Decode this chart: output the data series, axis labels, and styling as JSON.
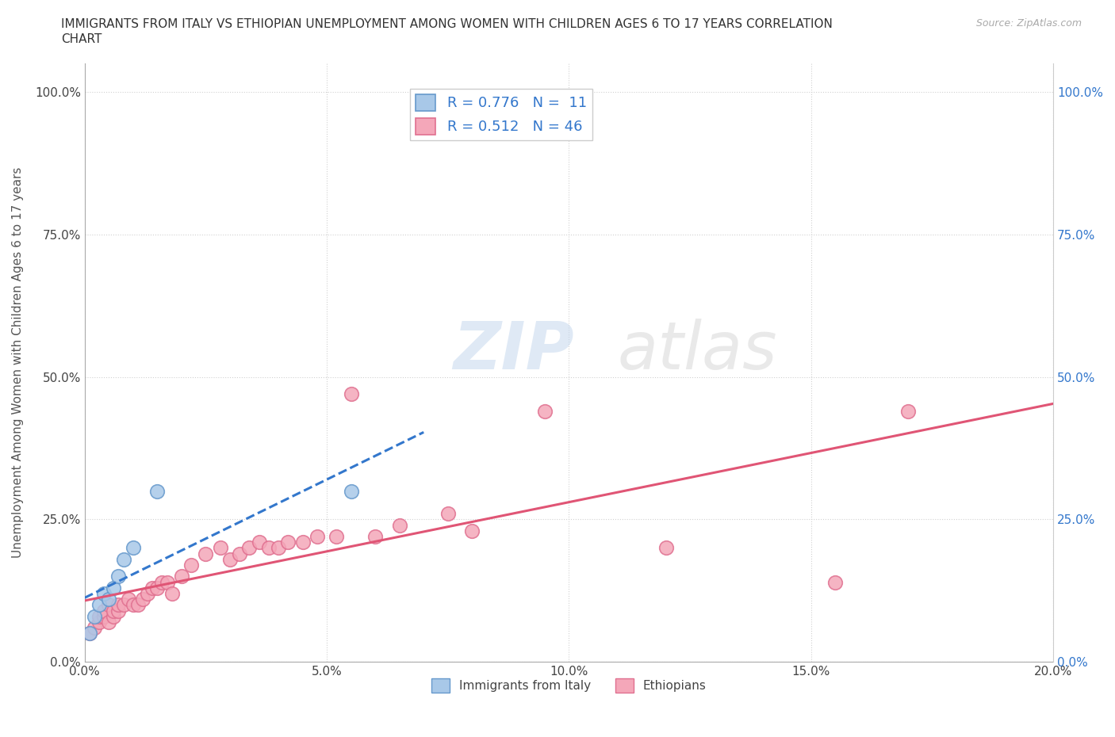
{
  "title_line1": "IMMIGRANTS FROM ITALY VS ETHIOPIAN UNEMPLOYMENT AMONG WOMEN WITH CHILDREN AGES 6 TO 17 YEARS CORRELATION",
  "title_line2": "CHART",
  "source": "Source: ZipAtlas.com",
  "ylabel": "Unemployment Among Women with Children Ages 6 to 17 years",
  "xlim": [
    0.0,
    0.2
  ],
  "ylim": [
    0.0,
    1.05
  ],
  "xtick_labels": [
    "0.0%",
    "5.0%",
    "10.0%",
    "15.0%",
    "20.0%"
  ],
  "xtick_vals": [
    0.0,
    0.05,
    0.1,
    0.15,
    0.2
  ],
  "ytick_labels": [
    "0.0%",
    "25.0%",
    "50.0%",
    "75.0%",
    "100.0%"
  ],
  "ytick_vals": [
    0.0,
    0.25,
    0.5,
    0.75,
    1.0
  ],
  "italy_color": "#a8c8e8",
  "ethiopia_color": "#f4a7b9",
  "italy_edge_color": "#6699cc",
  "ethiopia_edge_color": "#e07090",
  "trend_italy_color": "#3377cc",
  "trend_ethiopia_color": "#e05575",
  "legend_R_italy": "0.776",
  "legend_N_italy": "11",
  "legend_R_ethiopia": "0.512",
  "legend_N_ethiopia": "46",
  "italy_x": [
    0.001,
    0.002,
    0.003,
    0.004,
    0.005,
    0.006,
    0.007,
    0.008,
    0.01,
    0.015,
    0.055
  ],
  "italy_y": [
    0.05,
    0.08,
    0.1,
    0.12,
    0.11,
    0.13,
    0.15,
    0.18,
    0.2,
    0.3,
    0.3
  ],
  "ethiopia_x": [
    0.001,
    0.002,
    0.003,
    0.003,
    0.004,
    0.004,
    0.005,
    0.005,
    0.006,
    0.006,
    0.007,
    0.007,
    0.008,
    0.009,
    0.01,
    0.011,
    0.012,
    0.013,
    0.014,
    0.015,
    0.016,
    0.017,
    0.018,
    0.02,
    0.022,
    0.025,
    0.028,
    0.03,
    0.032,
    0.034,
    0.036,
    0.038,
    0.04,
    0.042,
    0.045,
    0.048,
    0.052,
    0.055,
    0.06,
    0.065,
    0.075,
    0.08,
    0.095,
    0.12,
    0.155,
    0.17
  ],
  "ethiopia_y": [
    0.05,
    0.06,
    0.07,
    0.08,
    0.08,
    0.09,
    0.07,
    0.1,
    0.08,
    0.09,
    0.09,
    0.1,
    0.1,
    0.11,
    0.1,
    0.1,
    0.11,
    0.12,
    0.13,
    0.13,
    0.14,
    0.14,
    0.12,
    0.15,
    0.17,
    0.19,
    0.2,
    0.18,
    0.19,
    0.2,
    0.21,
    0.2,
    0.2,
    0.21,
    0.21,
    0.22,
    0.22,
    0.47,
    0.22,
    0.24,
    0.26,
    0.23,
    0.44,
    0.2,
    0.14,
    0.44
  ],
  "grid_color": "#cccccc",
  "background_color": "#ffffff",
  "text_color": "#444444",
  "title_color": "#333333",
  "axis_label_color": "#555555",
  "watermark_color_zip": "#c5d8ee",
  "watermark_color_atlas": "#d8d8d8",
  "legend_text_color": "#3377cc"
}
